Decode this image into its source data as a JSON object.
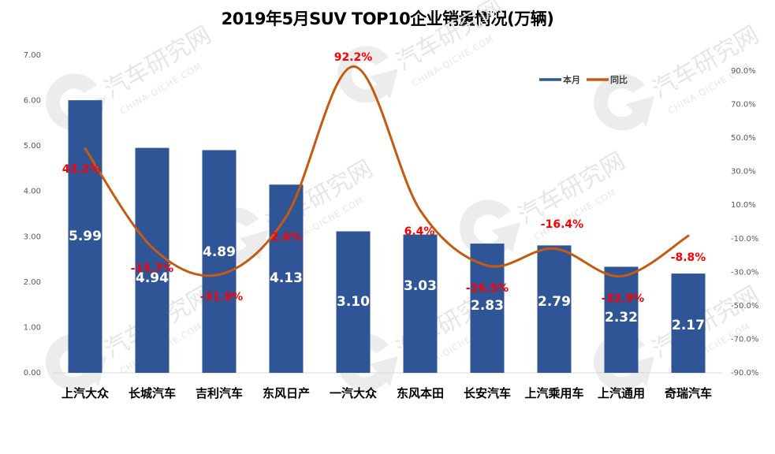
{
  "chart_data": {
    "type": "bar",
    "title": "2019年5月SUV TOP10企业销量情况(万辆)",
    "xlabel": "",
    "ylabel": "",
    "categories": [
      "上汽大众",
      "长城汽车",
      "吉利汽车",
      "东风日产",
      "一汽大众",
      "东风本田",
      "长安汽车",
      "上汽乘用车",
      "上汽通用",
      "奇瑞汽车"
    ],
    "series": [
      {
        "name": "本月",
        "type": "bar",
        "axis": "left",
        "color": "#2f5597",
        "values": [
          5.99,
          4.94,
          4.89,
          4.13,
          3.1,
          3.03,
          2.83,
          2.79,
          2.32,
          2.17
        ],
        "labels": [
          "5.99",
          "4.94",
          "4.89",
          "4.13",
          "3.10",
          "3.03",
          "2.83",
          "2.79",
          "2.32",
          "2.17"
        ]
      },
      {
        "name": "同比",
        "type": "line",
        "smooth": true,
        "axis": "right",
        "color": "#c55a11",
        "values": [
          43.2,
          -15.7,
          -31.9,
          2.6,
          92.2,
          6.4,
          -26.5,
          -16.4,
          -32.9,
          -8.8
        ],
        "labels": [
          "43.2%",
          "-15.7%",
          "-31.9%",
          "2.6%",
          "92.2%",
          "6.4%",
          "-26.5%",
          "-16.4%",
          "-32.9%",
          "-8.8%"
        ]
      }
    ],
    "ylim": [
      0,
      7
    ],
    "y_ticks": [
      "0.00",
      "1.00",
      "2.00",
      "3.00",
      "4.00",
      "5.00",
      "6.00",
      "7.00"
    ],
    "y2lim": [
      -90,
      90
    ],
    "y2_ticks": [
      "-90.0%",
      "-70.0%",
      "-50.0%",
      "-30.0%",
      "-10.0%",
      "10.0%",
      "30.0%",
      "50.0%",
      "70.0%",
      "90.0%"
    ],
    "grid": false,
    "legend": {
      "placement": "top-right",
      "entries": [
        "本月",
        "同比"
      ]
    },
    "label_color": "#ff0000",
    "bar_label_color": "#ffffff"
  },
  "watermark": {
    "brand": "汽车研究网",
    "site": "CHINA-QICHE.COM"
  }
}
